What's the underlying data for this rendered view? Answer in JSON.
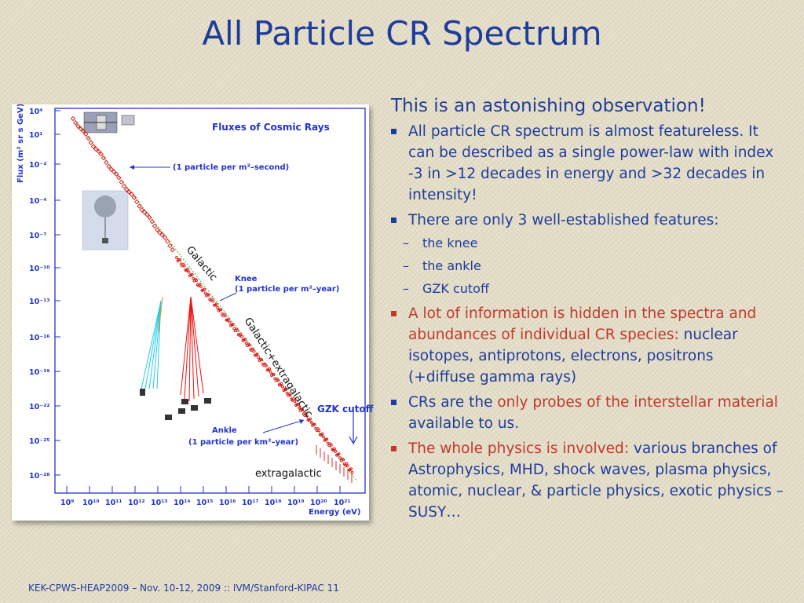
{
  "title": "All Particle CR Spectrum",
  "figure": {
    "plot_title": "Fluxes of Cosmic Rays",
    "y_axis_label": "Flux (m² sr s GeV)⁻¹",
    "x_axis_label": "Energy (eV)",
    "y_ticks": [
      "10⁴",
      "10¹",
      "10⁻²",
      "10⁻⁴",
      "10⁻⁷",
      "10⁻¹⁰",
      "10⁻¹³",
      "10⁻¹⁶",
      "10⁻¹⁹",
      "10⁻²²",
      "10⁻²⁵",
      "10⁻²⁸"
    ],
    "x_ticks": [
      "10⁹",
      "10¹⁰",
      "10¹¹",
      "10¹²",
      "10¹³",
      "10¹⁴",
      "10¹⁵",
      "10¹⁶",
      "10¹⁷",
      "10¹⁸",
      "10¹⁹",
      "10²⁰",
      "10²¹"
    ],
    "annotation_top": "(1 particle per m²–second)",
    "annotation_knee_1": "Knee",
    "annotation_knee_2": "(1 particle per m²–year)",
    "annotation_ankle_1": "Ankle",
    "annotation_ankle_2": "(1 particle per km²–year)",
    "label_galactic": "Galactic",
    "label_galactic_extragalactic": "Galactic+extragalactic",
    "label_gzk": "GZK cutoff",
    "label_extragalactic": "extragalactic"
  },
  "content": {
    "intro": "This is an astonishing observation!",
    "bullet1": "All particle CR spectrum is almost featureless. It can be described as a single power-law with index -3 in >12 decades in energy and >32 decades in intensity!",
    "bullet2": "There are only 3 well-established features:",
    "sub1": "the knee",
    "sub2": "the ankle",
    "sub3": "GZK cutoff",
    "bullet3_red": "A lot of information is hidden in the spectra and abundances of individual CR species:",
    "bullet3_rest": " nuclear isotopes, antiprotons, electrons, positrons (+diffuse gamma rays)",
    "bullet4_pre": "CRs are the ",
    "bullet4_red": "only probes of the interstellar material",
    "bullet4_post": " available to us.",
    "bullet5_red": "The whole physics is involved:",
    "bullet5_rest": " various branches of Astrophysics, MHD, shock waves, plasma physics, atomic, nuclear, & particle physics, exotic physics – SUSY…"
  },
  "footer": "KEK-CPWS-HEAP2009 – Nov. 10-12, 2009 :: IVM/Stanford-KIPAC  11",
  "colors": {
    "text_blue": "#1f3c9a",
    "highlight_red": "#c0392b",
    "figure_blue": "#2233cc",
    "data_red": "#dd1111"
  }
}
